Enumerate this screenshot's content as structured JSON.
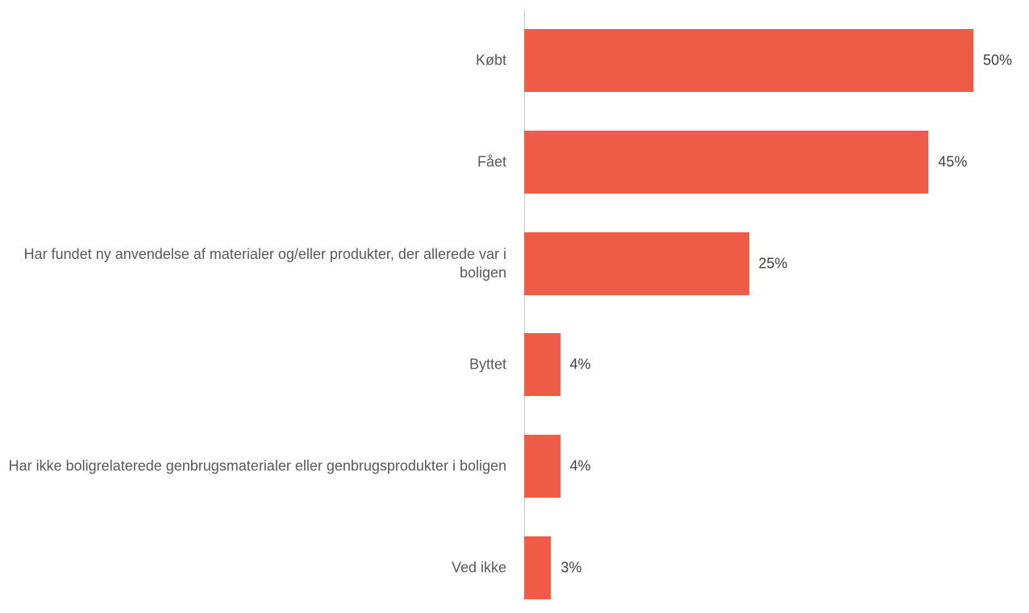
{
  "chart_data": {
    "type": "hbar",
    "categories": [
      "Købt",
      "Fået",
      "Har fundet ny anvendelse af materialer og/eller produkter, der allerede var i boligen",
      "Byttet",
      "Har ikke boligrelaterede genbrugsmaterialer eller genbrugsprodukter i boligen",
      "Ved ikke"
    ],
    "values": [
      50,
      45,
      25,
      4,
      4,
      3
    ],
    "value_labels": [
      "50%",
      "45%",
      "25%",
      "4%",
      "4%",
      "3%"
    ],
    "color": "#ee5b47"
  }
}
